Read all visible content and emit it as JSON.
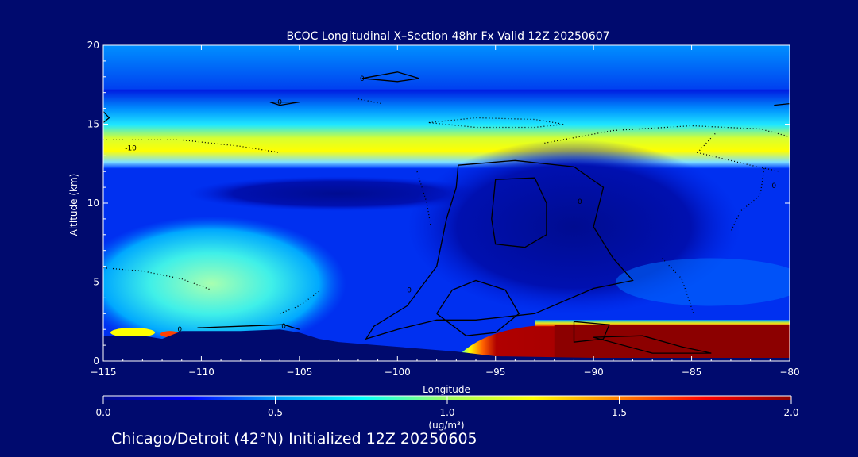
{
  "chart_data": {
    "type": "heatmap",
    "title": "BCOC Longitudinal X–Section 48hr  Fx Valid 12Z 20250607",
    "xlabel": "Longitude",
    "ylabel": "Altitude (km)",
    "xlim": [
      -115,
      -80
    ],
    "ylim": [
      0,
      20
    ],
    "x_ticks": [
      -115,
      -110,
      -105,
      -100,
      -95,
      -90,
      -85,
      -80
    ],
    "x_tick_labels": [
      "−115",
      "−110",
      "−105",
      "−100",
      "−95",
      "−90",
      "−85",
      "−80"
    ],
    "y_ticks": [
      0,
      5,
      10,
      15,
      20
    ],
    "y_tick_labels": [
      "0",
      "5",
      "10",
      "15",
      "20"
    ],
    "colorbar": {
      "label": "(ug/m³)",
      "range": [
        0.0,
        2.0
      ],
      "ticks": [
        0.0,
        0.5,
        1.0,
        1.5,
        2.0
      ],
      "tick_labels": [
        "0.0",
        "0.5",
        "1.0",
        "1.5",
        "2.0"
      ],
      "colormap": [
        "#000a8c",
        "#0000ff",
        "#00a0ff",
        "#00ffff",
        "#a0ff60",
        "#ffff00",
        "#ff8000",
        "#ff0000",
        "#8c0000"
      ]
    },
    "contour_labels": [
      {
        "text": "0",
        "x": -101.8,
        "y": 17.9
      },
      {
        "text": "0",
        "x": -106.0,
        "y": 16.4
      },
      {
        "text": "-10",
        "x": -113.6,
        "y": 13.5
      },
      {
        "text": "0",
        "x": -80.8,
        "y": 11.1
      },
      {
        "text": "0",
        "x": -90.7,
        "y": 10.1
      },
      {
        "text": "0",
        "x": -99.4,
        "y": 4.5
      },
      {
        "text": "0",
        "x": -111.1,
        "y": 2.0
      },
      {
        "text": "0",
        "x": -105.8,
        "y": 2.2
      }
    ],
    "terrain_km": [
      [
        -115,
        1.6
      ],
      [
        -113,
        1.6
      ],
      [
        -112,
        1.4
      ],
      [
        -111,
        1.9
      ],
      [
        -110,
        1.9
      ],
      [
        -108,
        1.9
      ],
      [
        -106,
        2.0
      ],
      [
        -105,
        1.8
      ],
      [
        -104,
        1.4
      ],
      [
        -103,
        1.2
      ],
      [
        -101,
        1.0
      ],
      [
        -99,
        0.8
      ],
      [
        -97,
        0.6
      ],
      [
        -95,
        0.3
      ],
      [
        -90,
        0.2
      ],
      [
        -85,
        0.2
      ],
      [
        -80,
        0.2
      ]
    ],
    "field_features": [
      {
        "name": "high-layer-band",
        "x": [
          -115,
          -80
        ],
        "y": [
          13,
          17
        ],
        "value": 1.3
      },
      {
        "name": "mid-layer-plume",
        "x": [
          -115,
          -102
        ],
        "y": [
          2,
          7
        ],
        "value": 0.85
      },
      {
        "name": "surface-max",
        "x": [
          -96,
          -80
        ],
        "y": [
          0.2,
          2.3
        ],
        "value": 2.0
      }
    ]
  },
  "footer_text": "Chicago/Detroit (42°N) Initialized 12Z 20250605"
}
